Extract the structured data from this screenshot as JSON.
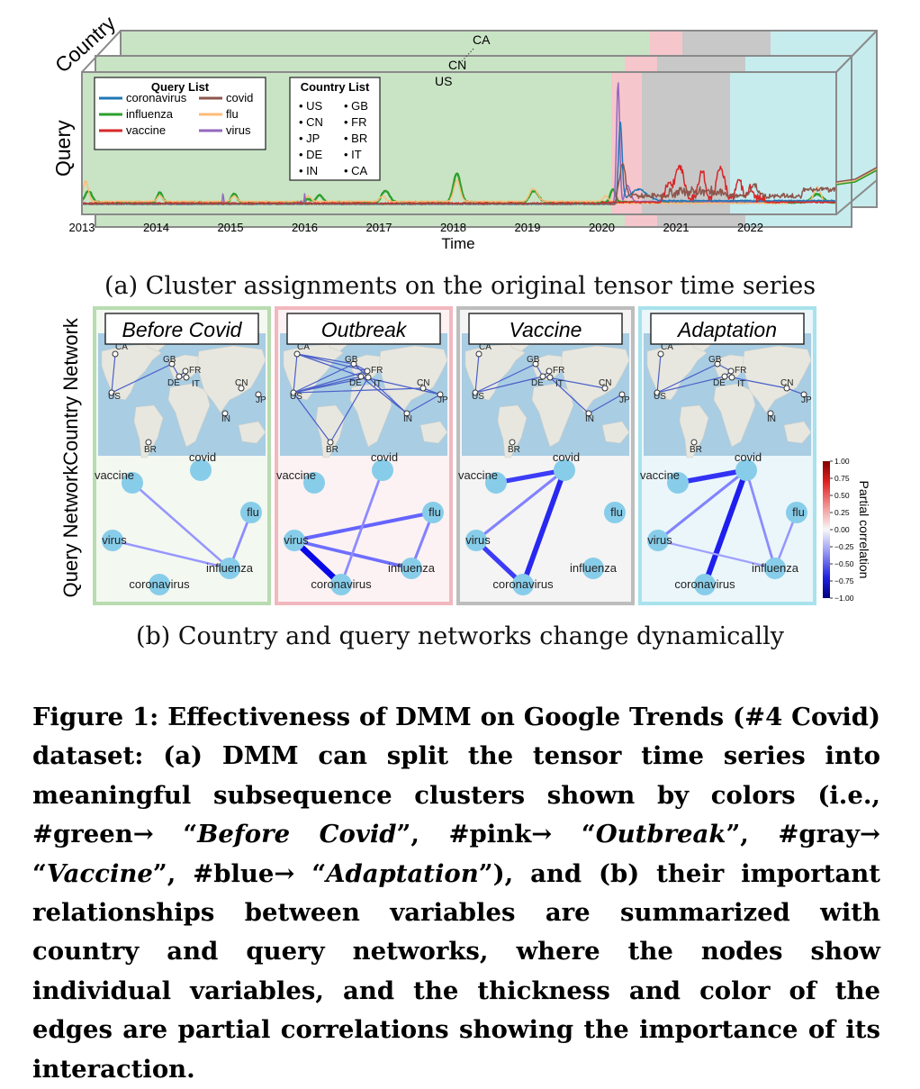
{
  "figure_a": {
    "axis_x_label": "Time",
    "axis_y_label": "Query",
    "axis_z_label": "Country",
    "years": [
      "2013",
      "2014",
      "2015",
      "2016",
      "2017",
      "2018",
      "2019",
      "2020",
      "2021",
      "2022"
    ],
    "layer_labels": [
      "US",
      "CN",
      "CA"
    ],
    "query_list_title": "Query List",
    "query_list": [
      {
        "name": "coronavirus",
        "color": "#1f77b4"
      },
      {
        "name": "covid",
        "color": "#8c564b"
      },
      {
        "name": "influenza",
        "color": "#2ca02c"
      },
      {
        "name": "flu",
        "color": "#ffbb78"
      },
      {
        "name": "vaccine",
        "color": "#d62728"
      },
      {
        "name": "virus",
        "color": "#9467bd"
      }
    ],
    "country_list_title": "Country List",
    "country_list": [
      "US",
      "GB",
      "CN",
      "FR",
      "JP",
      "BR",
      "DE",
      "IT",
      "IN",
      "CA"
    ],
    "segments": [
      {
        "label": "Before Covid",
        "color": "#c9e4c5",
        "start": "2013-01",
        "end": "2020-02"
      },
      {
        "label": "Outbreak",
        "color": "#f5c6cc",
        "start": "2020-02",
        "end": "2020-06"
      },
      {
        "label": "Vaccine",
        "color": "#c8c8c8",
        "start": "2020-06",
        "end": "2021-08"
      },
      {
        "label": "Adaptation",
        "color": "#c7ecee",
        "start": "2021-08",
        "end": "2023-12"
      }
    ]
  },
  "caption_a": "(a) Cluster assignments on the original tensor time series",
  "figure_b": {
    "row_country": "Country Network",
    "row_query": "Query Network",
    "colorbar_label": "Partial correlation",
    "colorbar_ticks": [
      "1.00",
      "0.75",
      "0.50",
      "0.25",
      "0.00",
      "−0.25",
      "−0.50",
      "−0.75",
      "−1.00"
    ],
    "panels": [
      {
        "title": "Before Covid",
        "border": "#b8dcb0",
        "bg": "#f3f8f1",
        "country_edges": [
          [
            "CA",
            "US"
          ],
          [
            "US",
            "GB"
          ],
          [
            "GB",
            "DE"
          ],
          [
            "DE",
            "FR"
          ],
          [
            "FR",
            "IT"
          ],
          [
            "DE",
            "IT"
          ]
        ],
        "query_edges": [
          {
            "a": "vaccine",
            "b": "influenza",
            "w": -0.25
          },
          {
            "a": "virus",
            "b": "influenza",
            "w": -0.25
          },
          {
            "a": "flu",
            "b": "influenza",
            "w": -0.3
          }
        ]
      },
      {
        "title": "Outbreak",
        "border": "#f2b8bf",
        "bg": "#fcf2f3",
        "country_edges": [
          [
            "CA",
            "US"
          ],
          [
            "CA",
            "GB"
          ],
          [
            "CA",
            "FR"
          ],
          [
            "CA",
            "DE"
          ],
          [
            "US",
            "GB"
          ],
          [
            "US",
            "FR"
          ],
          [
            "US",
            "DE"
          ],
          [
            "US",
            "IT"
          ],
          [
            "US",
            "CN"
          ],
          [
            "US",
            "BR"
          ],
          [
            "GB",
            "FR"
          ],
          [
            "GB",
            "IT"
          ],
          [
            "GB",
            "IN"
          ],
          [
            "DE",
            "IN"
          ],
          [
            "DE",
            "JP"
          ],
          [
            "IT",
            "BR"
          ],
          [
            "CN",
            "JP"
          ],
          [
            "IN",
            "JP"
          ]
        ],
        "query_edges": [
          {
            "a": "virus",
            "b": "coronavirus",
            "w": -0.95
          },
          {
            "a": "virus",
            "b": "flu",
            "w": -0.5
          },
          {
            "a": "virus",
            "b": "influenza",
            "w": -0.45
          },
          {
            "a": "influenza",
            "b": "flu",
            "w": -0.35
          },
          {
            "a": "covid",
            "b": "coronavirus",
            "w": -0.3
          }
        ]
      },
      {
        "title": "Vaccine",
        "border": "#bdbdbd",
        "bg": "#f4f4f4",
        "country_edges": [
          [
            "CA",
            "US"
          ],
          [
            "US",
            "GB"
          ],
          [
            "US",
            "DE"
          ],
          [
            "GB",
            "DE"
          ],
          [
            "DE",
            "FR"
          ],
          [
            "FR",
            "IT"
          ],
          [
            "DE",
            "IT"
          ],
          [
            "IT",
            "IN"
          ],
          [
            "IN",
            "JP"
          ],
          [
            "DE",
            "CN"
          ]
        ],
        "query_edges": [
          {
            "a": "vaccine",
            "b": "covid",
            "w": -0.7
          },
          {
            "a": "covid",
            "b": "coronavirus",
            "w": -0.8
          },
          {
            "a": "virus",
            "b": "coronavirus",
            "w": -0.7
          },
          {
            "a": "virus",
            "b": "covid",
            "w": -0.35
          }
        ]
      },
      {
        "title": "Adaptation",
        "border": "#a8e2ec",
        "bg": "#eaf6fa",
        "country_edges": [
          [
            "CA",
            "US"
          ],
          [
            "US",
            "GB"
          ],
          [
            "US",
            "DE"
          ],
          [
            "GB",
            "FR"
          ],
          [
            "DE",
            "FR"
          ],
          [
            "FR",
            "IT"
          ],
          [
            "DE",
            "IT"
          ],
          [
            "IT",
            "CN"
          ],
          [
            "CN",
            "JP"
          ]
        ],
        "query_edges": [
          {
            "a": "vaccine",
            "b": "covid",
            "w": -0.75
          },
          {
            "a": "covid",
            "b": "coronavirus",
            "w": -0.85
          },
          {
            "a": "virus",
            "b": "covid",
            "w": -0.35
          },
          {
            "a": "covid",
            "b": "influenza",
            "w": -0.3
          },
          {
            "a": "influenza",
            "b": "flu",
            "w": -0.25
          },
          {
            "a": "virus",
            "b": "influenza",
            "w": -0.2
          }
        ]
      }
    ]
  },
  "caption_b": "(b) Country and query networks change dynamically",
  "figure_caption": {
    "t1": "Figure 1: Effectiveness of DMM on Google Trends (#4 Covid) dataset: (a) DMM can split the tensor time series into meaningful subsequence clusters shown by colors (i.e., #green→ “",
    "before": "Before Covid",
    "t2": "”, #pink→ “",
    "outbreak": "Outbreak",
    "t3": "”, #gray→ “",
    "vaccine": "Vaccine",
    "t4": "”, #blue→ “",
    "adaptation": "Adaptation",
    "t5": "”), and (b) their important relationships between variables are summarized with country and query networks, where the nodes show individual variables, and the thickness and color of the edges are partial correlations showing the importance of its interaction."
  }
}
